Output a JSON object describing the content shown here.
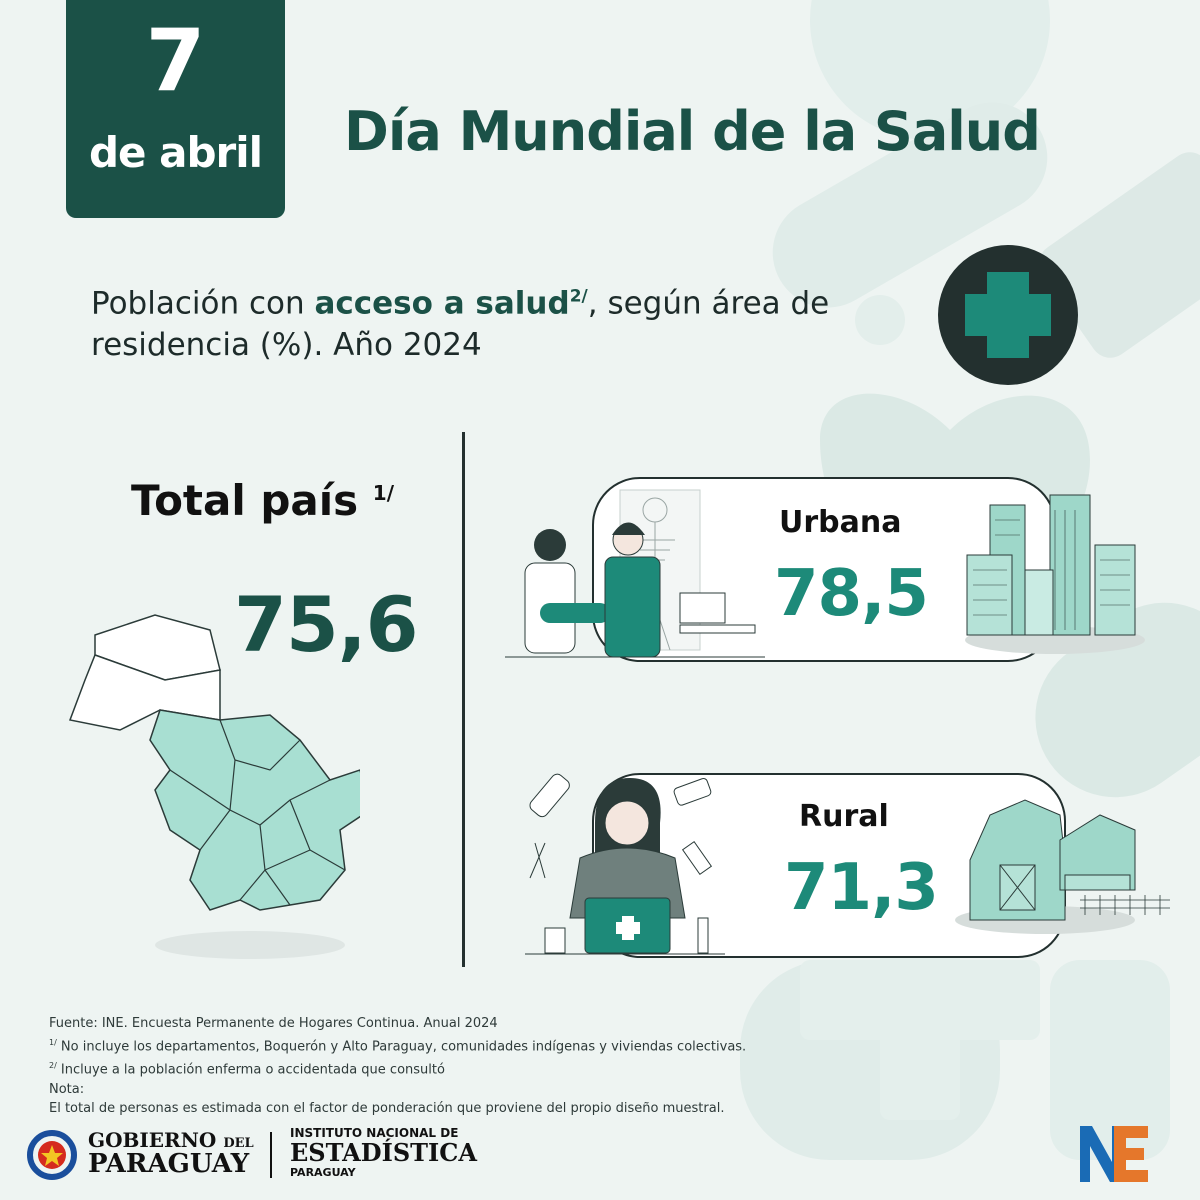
{
  "header": {
    "day": "7",
    "month": "de abril",
    "title": "Día Mundial  de la Salud"
  },
  "subtitle": {
    "part1": "Población con ",
    "highlight": "acceso a salud",
    "highlight_note": "2/",
    "part2": ", según área de residencia (%). Año 2024"
  },
  "total": {
    "label": "Total país",
    "note": "1/",
    "value": "75,6"
  },
  "areas": [
    {
      "label": "Urbana",
      "value": "78,5"
    },
    {
      "label": "Rural",
      "value": "71,3"
    }
  ],
  "notes": {
    "source": "Fuente: INE. Encuesta Permanente de Hogares Continua. Anual 2024",
    "n1_mark": "1/",
    "n1": " No incluye los departamentos, Boquerón y Alto Paraguay, comunidades indígenas y viviendas colectivas.",
    "n2_mark": "2/",
    "n2": " Incluye a la población enferma o accidentada que consultó",
    "nota_label": "Nota:",
    "nota": "El total de personas es estimada con el factor de ponderación que proviene del propio diseño muestral."
  },
  "footer": {
    "gob_line1": "GOBIERNO",
    "gob_del": "DEL",
    "gob_line2": "PARAGUAY",
    "ine_line1": "INSTITUTO NACIONAL DE",
    "ine_line2": "ESTADÍSTICA",
    "ine_line3": "PARAGUAY",
    "ine_logo": "NE"
  },
  "colors": {
    "dark_green": "#1b5147",
    "teal": "#1d8a79",
    "map_fill": "#a8dfd2",
    "background": "#eef4f2"
  }
}
